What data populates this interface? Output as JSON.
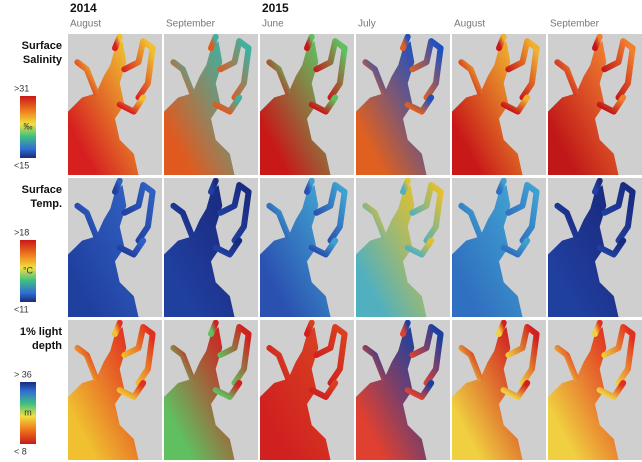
{
  "columns": [
    {
      "year": "2014",
      "month": "August"
    },
    {
      "month": "September"
    },
    {
      "year": "2015",
      "month": "June"
    },
    {
      "month": "July"
    },
    {
      "month": "August"
    },
    {
      "month": "September"
    }
  ],
  "rows": [
    {
      "label": [
        "Surface",
        "Salinity"
      ],
      "scale": {
        "max": ">31",
        "unit": "‰",
        "min": "<15"
      }
    },
    {
      "label": [
        "Surface",
        "Temp."
      ],
      "scale": {
        "max": ">18",
        "unit": "°C",
        "min": "<11"
      }
    },
    {
      "label": [
        "1% light",
        "depth"
      ],
      "scale": {
        "max": "> 36",
        "unit": "m",
        "min": "< 8"
      }
    }
  ]
}
